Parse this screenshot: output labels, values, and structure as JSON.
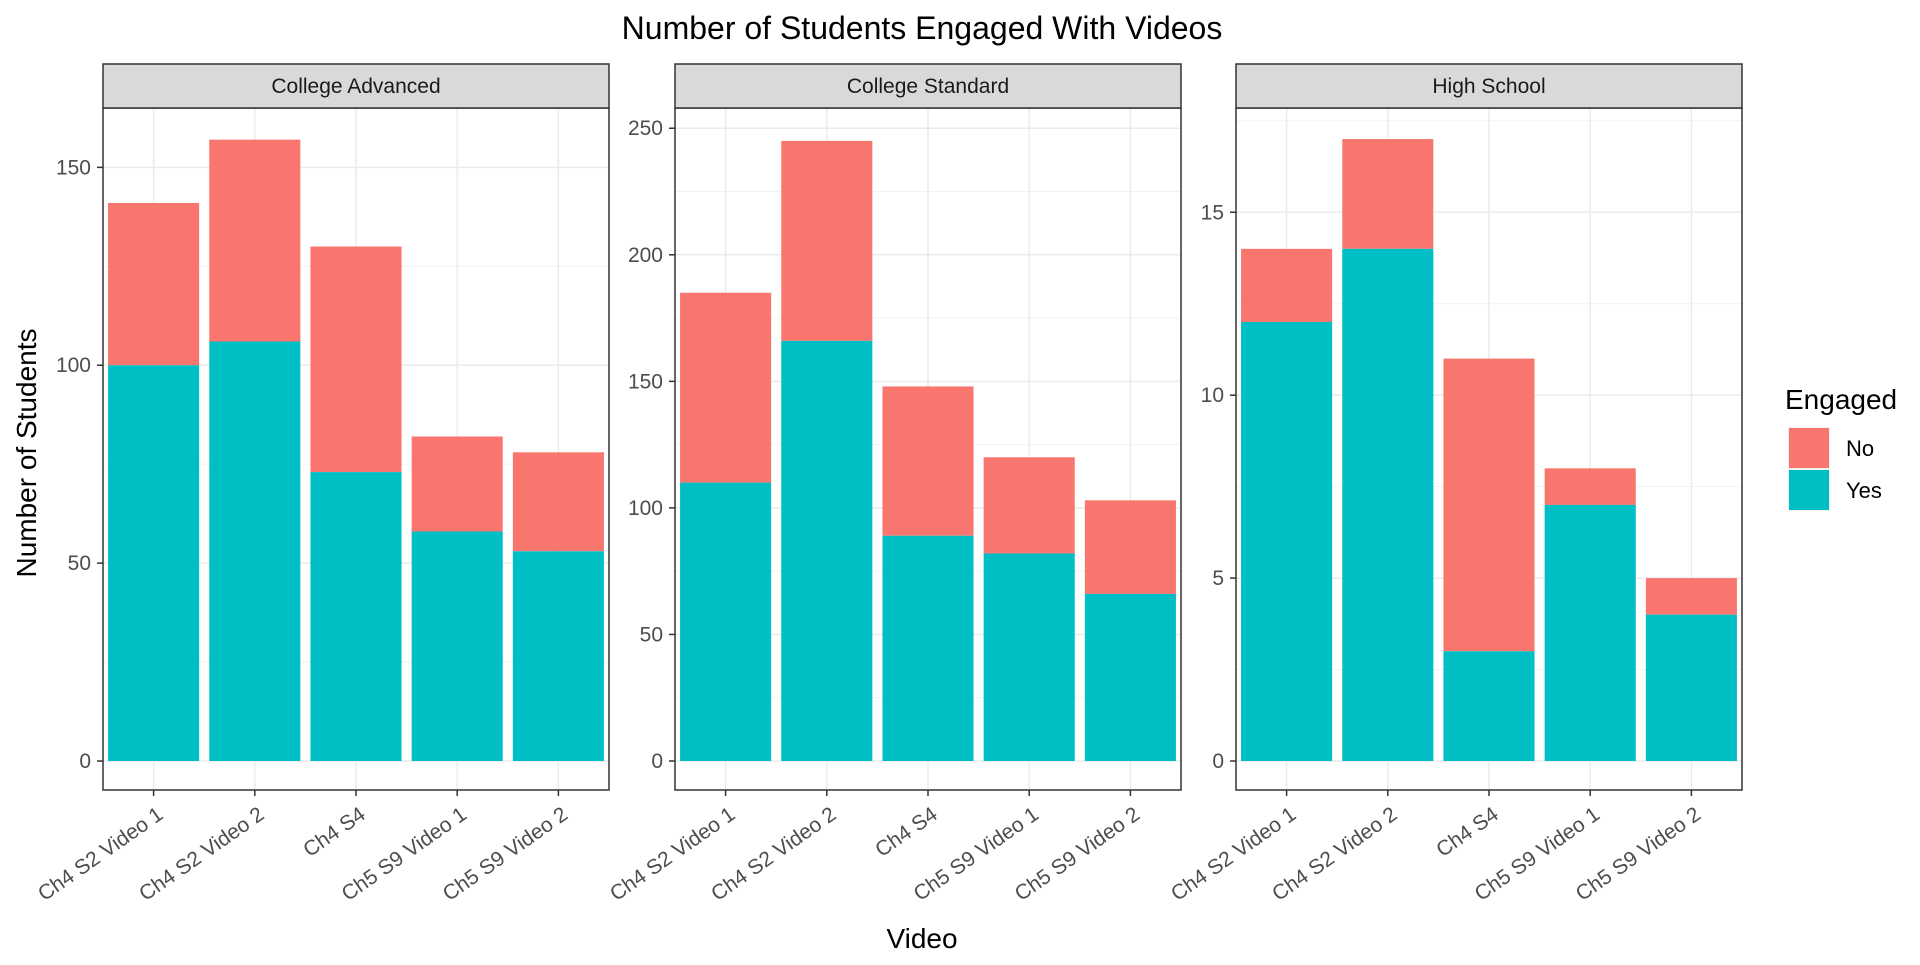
{
  "chart_data": {
    "type": "bar",
    "stacked": true,
    "title": "Number of Students Engaged With Videos",
    "xlabel": "Video",
    "ylabel": "Number of Students",
    "categories": [
      "Ch4 S2 Video 1",
      "Ch4 S2 Video 2",
      "Ch4 S4",
      "Ch5 S9 Video 1",
      "Ch5 S9 Video 2"
    ],
    "grid": true,
    "legend": {
      "title": "Engaged",
      "position": "right",
      "entries": [
        {
          "name": "No",
          "color": "#F8766D"
        },
        {
          "name": "Yes",
          "color": "#00BFC4"
        }
      ]
    },
    "panels": [
      {
        "label": "College Advanced",
        "ylim": [
          0,
          165
        ],
        "yticks": [
          0,
          50,
          100,
          150
        ],
        "series": [
          {
            "name": "Yes",
            "values": [
              100,
              106,
              73,
              58,
              53
            ]
          },
          {
            "name": "No",
            "values": [
              41,
              51,
              57,
              24,
              25
            ]
          }
        ]
      },
      {
        "label": "College Standard",
        "ylim": [
          0,
          258
        ],
        "yticks": [
          0,
          50,
          100,
          150,
          200,
          250
        ],
        "series": [
          {
            "name": "Yes",
            "values": [
              110,
              166,
              89,
              82,
              66
            ]
          },
          {
            "name": "No",
            "values": [
              75,
              79,
              59,
              38,
              37
            ]
          }
        ]
      },
      {
        "label": "High School",
        "ylim": [
          0,
          17.85
        ],
        "yticks": [
          0,
          5,
          10,
          15
        ],
        "series": [
          {
            "name": "Yes",
            "values": [
              12,
              14,
              3,
              7,
              4
            ]
          },
          {
            "name": "No",
            "values": [
              2,
              3,
              8,
              1,
              1
            ]
          }
        ]
      }
    ]
  }
}
